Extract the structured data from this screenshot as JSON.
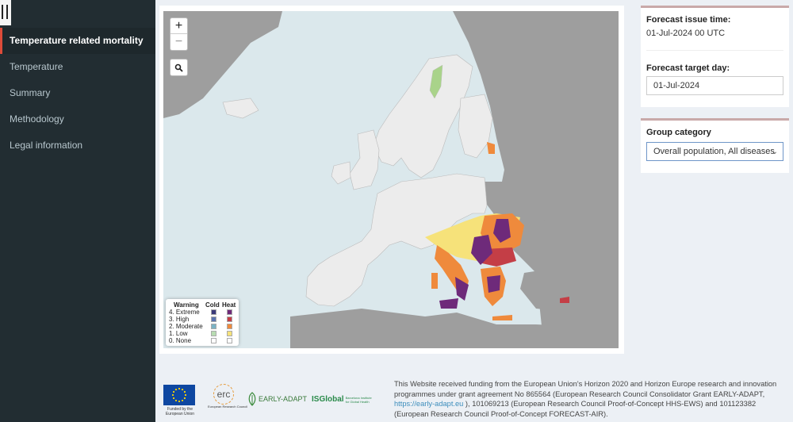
{
  "sidebar": {
    "items": [
      {
        "label": "Temperature related mortality",
        "active": true
      },
      {
        "label": "Temperature"
      },
      {
        "label": "Summary"
      },
      {
        "label": "Methodology"
      },
      {
        "label": "Legal information"
      }
    ]
  },
  "map": {
    "zoom_in": "+",
    "zoom_out": "−",
    "search_icon": "magnifier-icon",
    "legend": {
      "title": "Warning",
      "cold": "Cold",
      "heat": "Heat",
      "levels": [
        "4. Extreme",
        "3. High",
        "2. Moderate",
        "1. Low",
        "0. None"
      ],
      "cold_colors": [
        "#3b3a7a",
        "#5b74b0",
        "#7bb3c4",
        "#b7dcb2",
        "#ffffff"
      ],
      "heat_colors": [
        "#6e2a7a",
        "#c43e46",
        "#ef8a3c",
        "#f6e27a",
        "#ffffff"
      ]
    }
  },
  "forecast": {
    "issue_label": "Forecast issue time:",
    "issue_value": "01-Jul-2024 00 UTC",
    "target_label": "Forecast target day:",
    "target_value": "01-Jul-2024"
  },
  "group": {
    "label": "Group category",
    "selected": "Overall population, All diseases"
  },
  "footer": {
    "eu_caption": "Funded by the European Union",
    "erc_text": "erc",
    "erc_caption": "European Research Council",
    "early_adapt": "EARLY-ADAPT",
    "isglobal": "ISGlobal",
    "isglobal_sub": "Barcelona Institute for Global Health",
    "funding_text_1": "This Website received funding from the European Union's Horizon 2020 and Horizon Europe research and innovation programmes under grant agreement No 865564 (European Research Council Consolidator Grant EARLY-ADAPT, ",
    "funding_link": "https://early-adapt.eu",
    "funding_text_2": " ), 101069213 (European Research Council Proof-of-Concept HHS-EWS) and 101123382 (European Research Council Proof-of-Concept FORECAST-AIR)."
  }
}
